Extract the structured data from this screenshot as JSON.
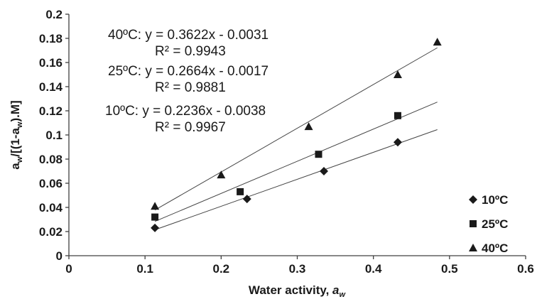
{
  "chart_data": {
    "type": "scatter",
    "xlabel_main": "Water activity, ",
    "xlabel_var": "a",
    "xlabel_sub": "w",
    "ylabel_parts": [
      "a",
      "w",
      "/[(1-a",
      "w",
      ").M]"
    ],
    "xlim": [
      0,
      0.6
    ],
    "ylim": [
      0,
      0.2
    ],
    "x_ticks": [
      "0",
      "0.1",
      "0.2",
      "0.3",
      "0.4",
      "0.5",
      "0.6"
    ],
    "y_ticks": [
      "0",
      "0.02",
      "0.04",
      "0.06",
      "0.08",
      "0.1",
      "0.12",
      "0.14",
      "0.16",
      "0.18",
      "0.2"
    ],
    "grid": false,
    "legend_position": "right",
    "series": [
      {
        "name": "10ºC",
        "marker": "diamond",
        "x": [
          0.113,
          0.234,
          0.335,
          0.432
        ],
        "y": [
          0.023,
          0.047,
          0.07,
          0.094
        ],
        "trend": {
          "slope": 0.2236,
          "intercept": -0.0038,
          "x_range": [
            0.113,
            0.484
          ]
        },
        "equation": "10ºC: y = 0.2236x - 0.0038",
        "r2": "R² = 0.9967"
      },
      {
        "name": "25ºC",
        "marker": "square",
        "x": [
          0.113,
          0.225,
          0.328,
          0.432
        ],
        "y": [
          0.032,
          0.053,
          0.084,
          0.116
        ],
        "trend": {
          "slope": 0.2664,
          "intercept": -0.0017,
          "x_range": [
            0.113,
            0.484
          ]
        },
        "equation": "25ºC: y = 0.2664x - 0.0017",
        "r2": "R² = 0.9881"
      },
      {
        "name": "40ºC",
        "marker": "triangle",
        "x": [
          0.113,
          0.2,
          0.315,
          0.432,
          0.484
        ],
        "y": [
          0.041,
          0.067,
          0.107,
          0.15,
          0.177
        ],
        "trend": {
          "slope": 0.3622,
          "intercept": -0.0031,
          "x_range": [
            0.113,
            0.484
          ]
        },
        "equation": "40ºC: y = 0.3622x - 0.0031",
        "r2": "R² = 0.9943"
      }
    ],
    "legend": [
      {
        "label": "10ºC",
        "marker": "diamond"
      },
      {
        "label": "25ºC",
        "marker": "square"
      },
      {
        "label": "40ºC",
        "marker": "triangle"
      }
    ],
    "colors": {
      "marker": "#1a1a1a",
      "trend": "#444444",
      "axis": "#404040"
    }
  }
}
